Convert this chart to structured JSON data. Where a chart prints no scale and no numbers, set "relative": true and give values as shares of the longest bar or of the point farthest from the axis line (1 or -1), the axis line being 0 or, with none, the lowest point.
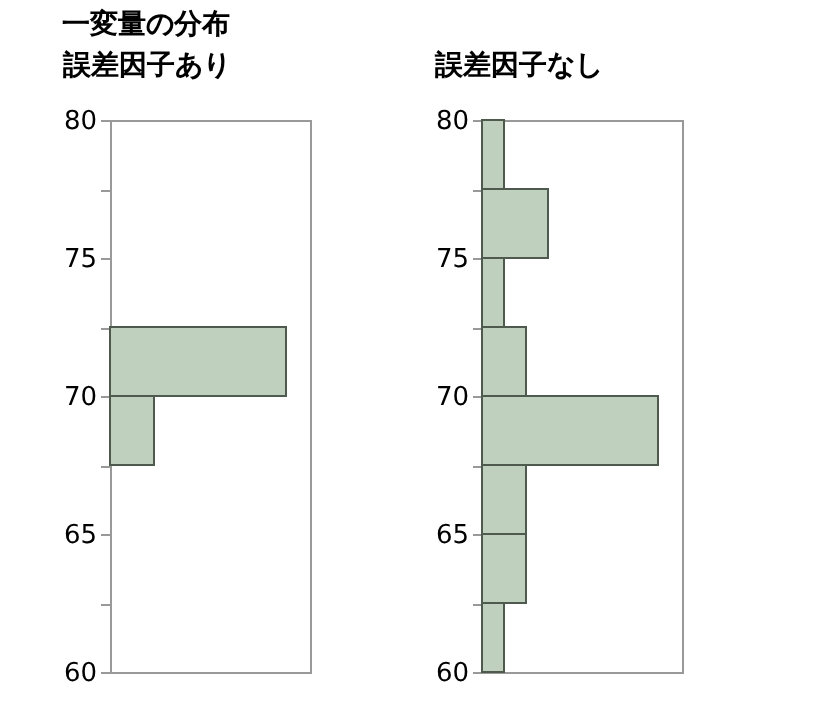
{
  "chart_data": [
    {
      "type": "bar",
      "title": "誤差因子あり",
      "annotations": [
        "一変量の分布"
      ],
      "orientation": "horizontal",
      "relative": true,
      "color": "#bfd0bf",
      "x": [
        68.75,
        71.25
      ],
      "values": [
        0.25,
        1
      ],
      "ylim": [
        60,
        80
      ],
      "yticks": [
        60,
        {
          "value": 62.5,
          "label": null
        },
        65,
        {
          "value": 67.5,
          "label": null
        },
        70,
        {
          "value": 72.5,
          "label": null
        },
        75,
        {
          "value": 77.5,
          "label": null
        },
        80
      ],
      "grid": false
    },
    {
      "type": "bar",
      "title": "誤差因子なし",
      "orientation": "horizontal",
      "relative": true,
      "color": "#bfd0bf",
      "x": [
        61.25,
        63.75,
        66.25,
        68.75,
        71.25,
        73.75,
        76.25,
        78.75
      ],
      "values": [
        0.125,
        0.25,
        0.25,
        1,
        0.25,
        0.125,
        0.375,
        0.125
      ],
      "ylim": [
        60,
        80
      ],
      "yticks": [
        60,
        {
          "value": 62.5,
          "label": null
        },
        65,
        {
          "value": 67.5,
          "label": null
        },
        70,
        {
          "value": 72.5,
          "label": null
        },
        75,
        {
          "value": 77.5,
          "label": null
        },
        80
      ],
      "grid": false
    }
  ]
}
